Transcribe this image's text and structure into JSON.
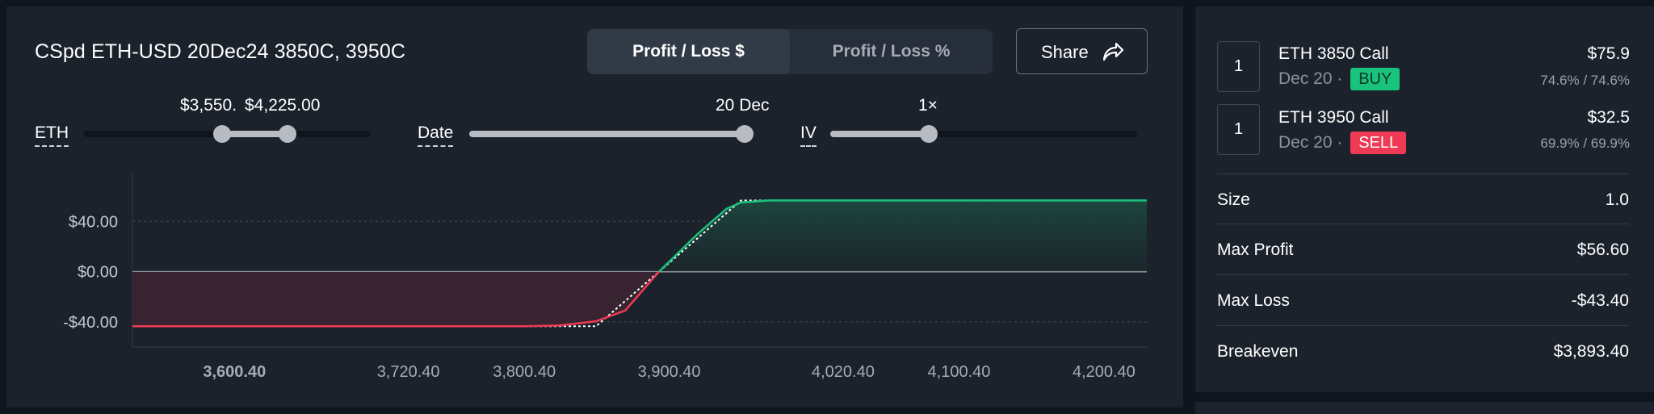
{
  "strategy": {
    "title": "CSpd ETH-USD 20Dec24 3850C, 3950C"
  },
  "toggle": {
    "options": [
      "Profit / Loss $",
      "Profit / Loss %"
    ],
    "selected": "Profit / Loss $"
  },
  "share": {
    "label": "Share",
    "icon": "share-arrow-icon"
  },
  "sliders": {
    "eth": {
      "label": "ETH",
      "min_value": "$3,550. ",
      "max_value": "$4,225.00"
    },
    "date": {
      "label": "Date",
      "value": "20 Dec"
    },
    "iv": {
      "label": "IV",
      "value": "1×"
    }
  },
  "chart_data": {
    "type": "area",
    "title": "",
    "xlabel": "",
    "ylabel": "",
    "x_ticks": [
      "3,600.40",
      "3,720.40",
      "3,800.40",
      "3,900.40",
      "4,020.40",
      "4,100.40",
      "4,200.40"
    ],
    "y_ticks": [
      "$40.00",
      "$0.00",
      "-$40.00"
    ],
    "xlim": [
      3530,
      4230
    ],
    "ylim": [
      -60,
      80
    ],
    "series": [
      {
        "name": "",
        "x": [
          3530,
          3800,
          3825,
          3850,
          3870,
          3893.4,
          3920,
          3940,
          3950,
          3970,
          4230
        ],
        "y": [
          -43.4,
          -43.4,
          -42.8,
          -39.5,
          -31,
          0,
          30,
          50,
          55,
          56.6,
          56.6
        ]
      },
      {
        "name": "",
        "x": [
          3530,
          3850,
          3950,
          4230
        ],
        "y": [
          -43.4,
          -43.4,
          56.6,
          56.6
        ]
      }
    ],
    "colors": {
      "profit": "#19c27d",
      "loss": "#ef3a55"
    },
    "grid": true
  },
  "legs": [
    {
      "qty": "1",
      "name": "ETH 3850 Call",
      "date": "Dec 20 ·",
      "side": "BUY",
      "price": "$75.9",
      "iv": "74.6% / 74.6%"
    },
    {
      "qty": "1",
      "name": "ETH 3950 Call",
      "date": "Dec 20 ·",
      "side": "SELL",
      "price": "$32.5",
      "iv": "69.9% / 69.9%"
    }
  ],
  "summary": {
    "size": {
      "label": "Size",
      "value": "1.0"
    },
    "max_profit": {
      "label": "Max Profit",
      "value": "$56.60"
    },
    "max_loss": {
      "label": "Max Loss",
      "value": "-$43.40"
    },
    "breakeven": {
      "label": "Breakeven",
      "value": "$3,893.40"
    }
  }
}
